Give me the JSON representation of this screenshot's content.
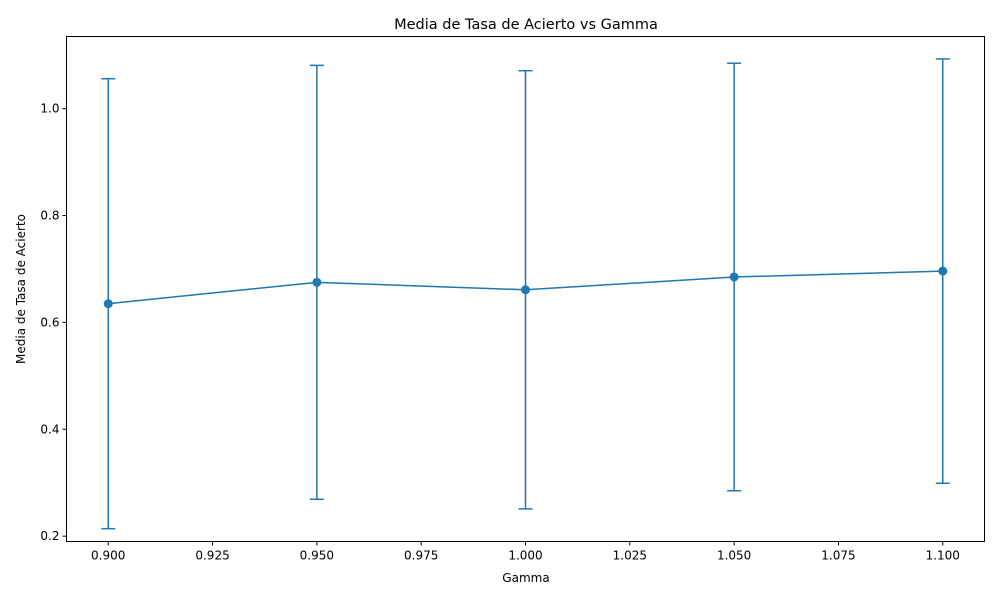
{
  "chart_data": {
    "type": "line",
    "title": "Media de Tasa de Acierto vs Gamma",
    "xlabel": "Gamma",
    "ylabel": "Media de Tasa de Acierto",
    "x": [
      0.9,
      0.95,
      1.0,
      1.05,
      1.1
    ],
    "series": [
      {
        "values": [
          0.635,
          0.675,
          0.661,
          0.685,
          0.696
        ],
        "error": [
          0.421,
          0.406,
          0.41,
          0.4,
          0.397
        ],
        "color": "#1f77b4",
        "marker": "circle"
      }
    ],
    "xlim": [
      0.89,
      1.11
    ],
    "ylim": [
      0.19,
      1.135
    ],
    "xticks": [
      0.9,
      0.925,
      0.95,
      0.975,
      1.0,
      1.025,
      1.05,
      1.075,
      1.1
    ],
    "xtick_labels": [
      "0.900",
      "0.925",
      "0.950",
      "0.975",
      "1.000",
      "1.025",
      "1.050",
      "1.075",
      "1.100"
    ],
    "yticks": [
      0.2,
      0.4,
      0.6,
      0.8,
      1.0
    ],
    "ytick_labels": [
      "0.2",
      "0.4",
      "0.6",
      "0.8",
      "1.0"
    ],
    "grid": false,
    "legend": "none"
  }
}
